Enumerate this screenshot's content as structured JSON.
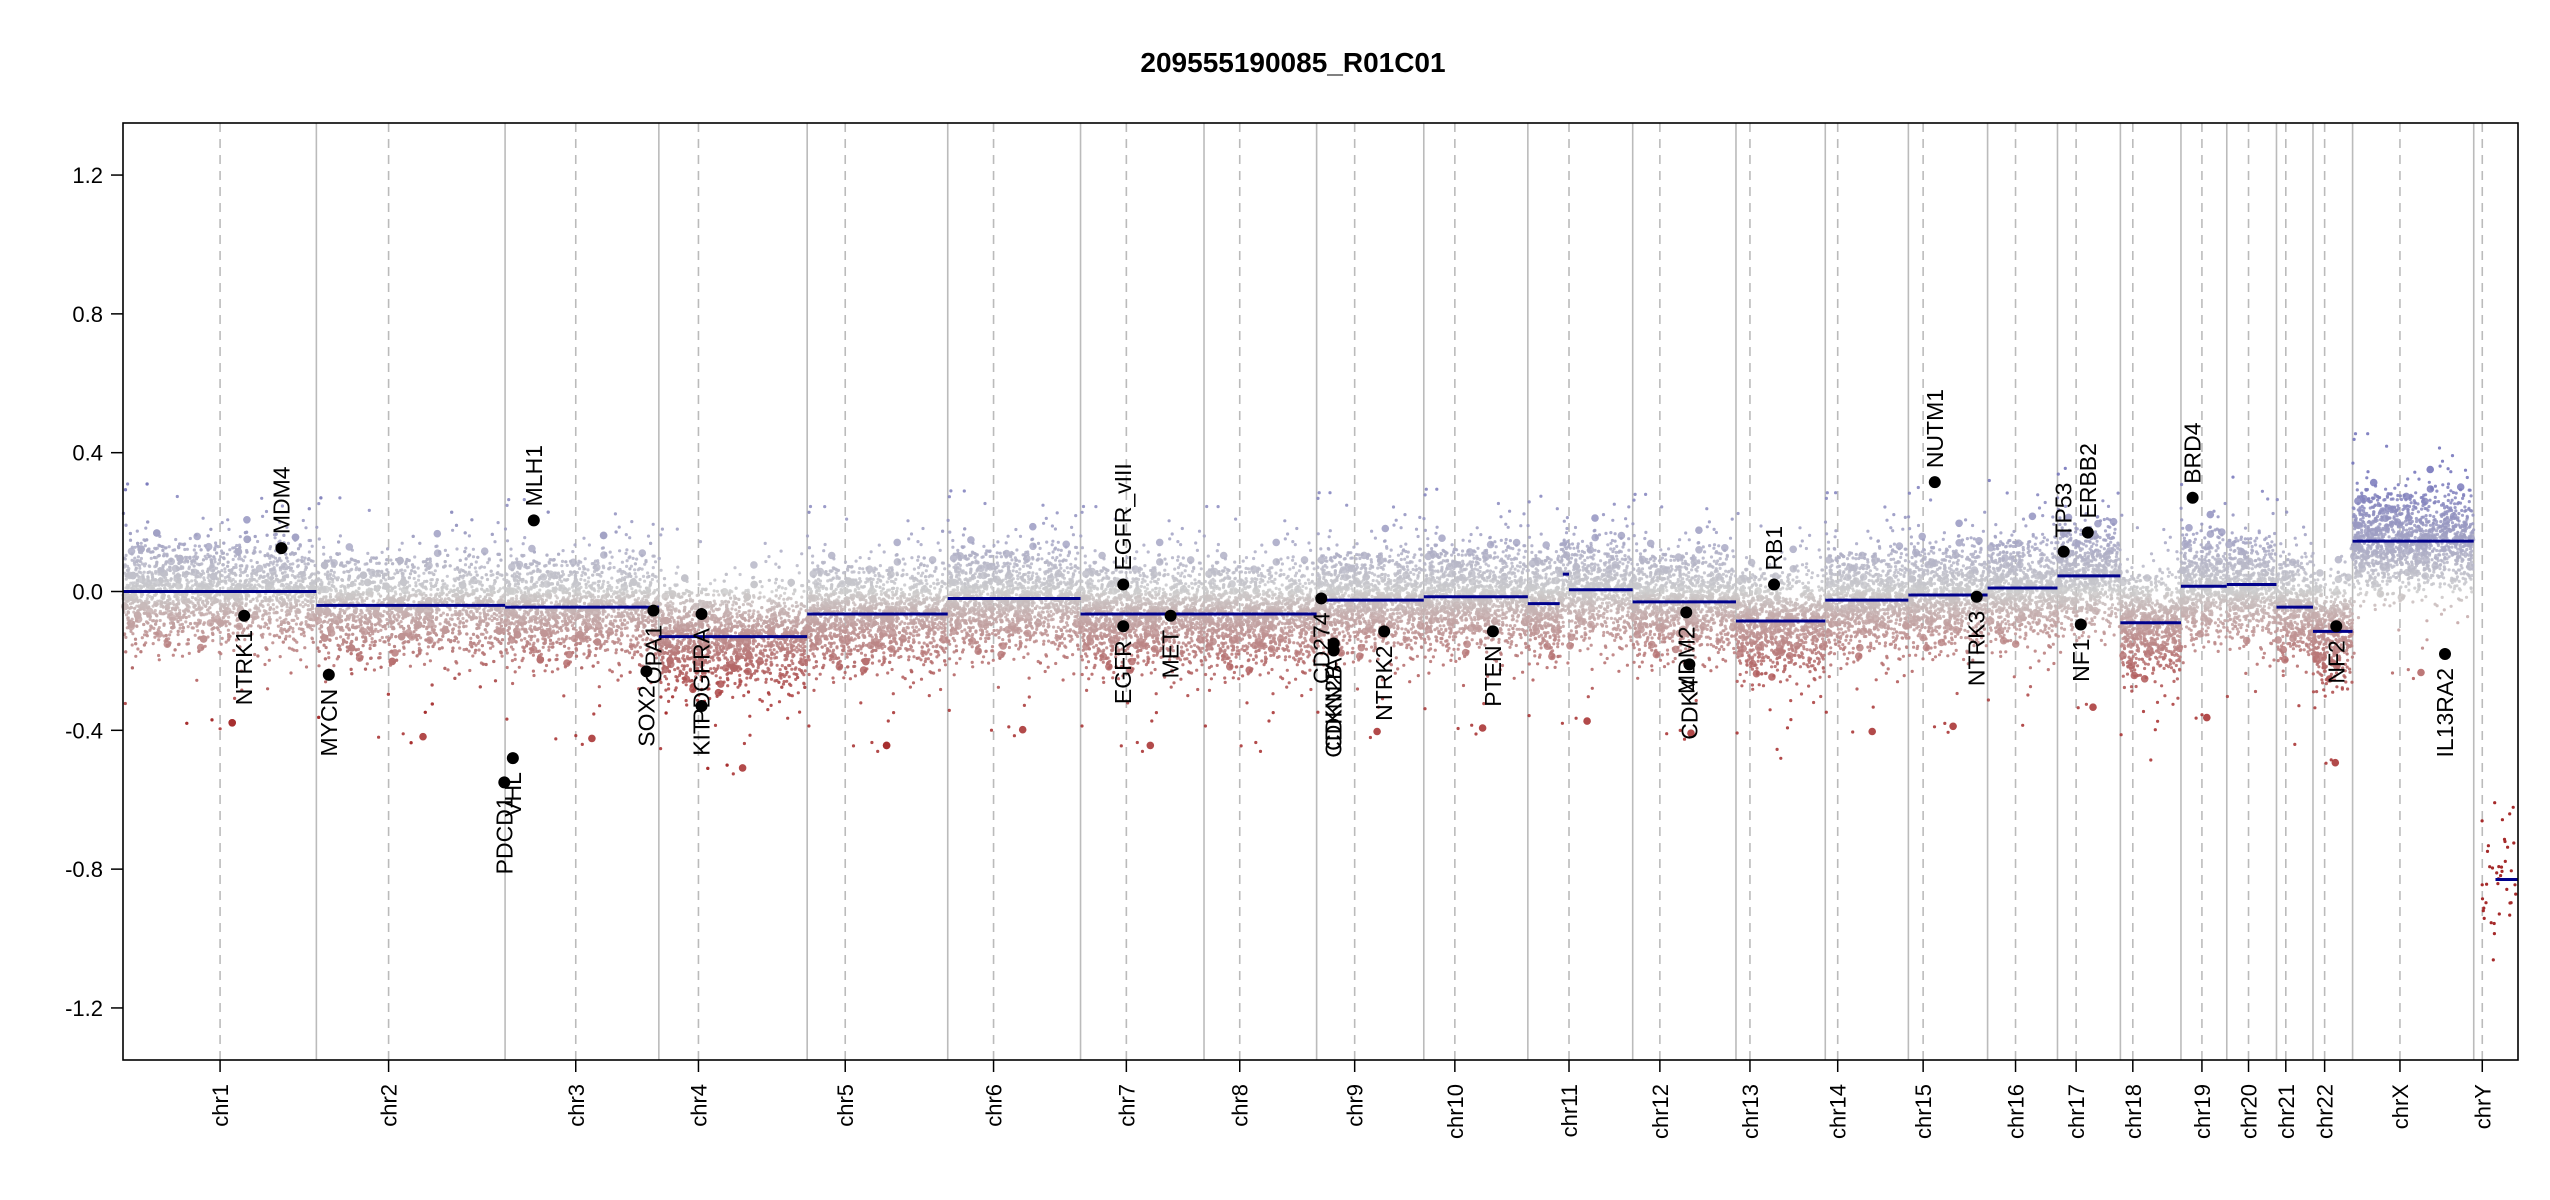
{
  "chart_data": {
    "type": "scatter",
    "title": "209555190085_R01C01",
    "xlabel": "",
    "ylabel": "",
    "ylim": [
      -1.35,
      1.35
    ],
    "y_ticks": [
      {
        "value": 1.2,
        "label": "1.2"
      },
      {
        "value": 0.8,
        "label": "0.8"
      },
      {
        "value": 0.4,
        "label": "0.4"
      },
      {
        "value": 0.0,
        "label": "0.0"
      },
      {
        "value": -0.4,
        "label": "-0.4"
      },
      {
        "value": -0.8,
        "label": "-0.8"
      },
      {
        "value": -1.2,
        "label": "-1.2"
      }
    ],
    "grid": "chromosome boundaries (solid) and centromeres (dashed)",
    "colors": {
      "segment": "#00008b",
      "gain": "#7777bb",
      "neutral": "#cccccc",
      "loss": "#a52a2a",
      "gene_point": "#000000",
      "boundary": "#bbbbbb"
    },
    "chromosomes": [
      {
        "name": "chr1",
        "start": 0,
        "end": 249,
        "centromere": 125
      },
      {
        "name": "chr2",
        "start": 249,
        "end": 492,
        "centromere": 342
      },
      {
        "name": "chr3",
        "start": 492,
        "end": 690,
        "centromere": 583
      },
      {
        "name": "chr4",
        "start": 690,
        "end": 881,
        "centromere": 741
      },
      {
        "name": "chr5",
        "start": 881,
        "end": 1062,
        "centromere": 930
      },
      {
        "name": "chr6",
        "start": 1062,
        "end": 1233,
        "centromere": 1121
      },
      {
        "name": "chr7",
        "start": 1233,
        "end": 1392,
        "centromere": 1292
      },
      {
        "name": "chr8",
        "start": 1392,
        "end": 1537,
        "centromere": 1438
      },
      {
        "name": "chr9",
        "start": 1537,
        "end": 1675,
        "centromere": 1586
      },
      {
        "name": "chr10",
        "start": 1675,
        "end": 1809,
        "centromere": 1715
      },
      {
        "name": "chr11",
        "start": 1809,
        "end": 1944,
        "centromere": 1862
      },
      {
        "name": "chr12",
        "start": 1944,
        "end": 2077,
        "centromere": 1979
      },
      {
        "name": "chr13",
        "start": 2077,
        "end": 2192,
        "centromere": 2095
      },
      {
        "name": "chr14",
        "start": 2192,
        "end": 2299,
        "centromere": 2208
      },
      {
        "name": "chr15",
        "start": 2299,
        "end": 2401,
        "centromere": 2318
      },
      {
        "name": "chr16",
        "start": 2401,
        "end": 2491,
        "centromere": 2437
      },
      {
        "name": "chr17",
        "start": 2491,
        "end": 2572,
        "centromere": 2515
      },
      {
        "name": "chr18",
        "start": 2572,
        "end": 2650,
        "centromere": 2588
      },
      {
        "name": "chr19",
        "start": 2650,
        "end": 2709,
        "centromere": 2677
      },
      {
        "name": "chr20",
        "start": 2709,
        "end": 2773,
        "centromere": 2737
      },
      {
        "name": "chr21",
        "start": 2773,
        "end": 2820,
        "centromere": 2785
      },
      {
        "name": "chr22",
        "start": 2820,
        "end": 2871,
        "centromere": 2835
      },
      {
        "name": "chrX",
        "start": 2871,
        "end": 3027,
        "centromere": 2932
      },
      {
        "name": "chrY",
        "start": 3027,
        "end": 3084,
        "centromere": 3038
      }
    ],
    "segments": [
      {
        "start": 0,
        "end": 249,
        "value": 0.0
      },
      {
        "start": 249,
        "end": 492,
        "value": -0.04
      },
      {
        "start": 492,
        "end": 690,
        "value": -0.045
      },
      {
        "start": 690,
        "end": 881,
        "value": -0.13
      },
      {
        "start": 881,
        "end": 1062,
        "value": -0.065
      },
      {
        "start": 1062,
        "end": 1233,
        "value": -0.02
      },
      {
        "start": 1233,
        "end": 1537,
        "value": -0.065
      },
      {
        "start": 1537,
        "end": 1675,
        "value": -0.025
      },
      {
        "start": 1675,
        "end": 1809,
        "value": -0.015
      },
      {
        "start": 1809,
        "end": 1850,
        "value": -0.035
      },
      {
        "start": 1854,
        "end": 1862,
        "value": 0.05
      },
      {
        "start": 1862,
        "end": 1944,
        "value": 0.005
      },
      {
        "start": 1944,
        "end": 2077,
        "value": -0.03
      },
      {
        "start": 2077,
        "end": 2192,
        "value": -0.085
      },
      {
        "start": 2192,
        "end": 2299,
        "value": -0.025
      },
      {
        "start": 2299,
        "end": 2401,
        "value": -0.01
      },
      {
        "start": 2401,
        "end": 2491,
        "value": 0.01
      },
      {
        "start": 2491,
        "end": 2572,
        "value": 0.045
      },
      {
        "start": 2572,
        "end": 2650,
        "value": -0.09
      },
      {
        "start": 2650,
        "end": 2709,
        "value": 0.015
      },
      {
        "start": 2709,
        "end": 2773,
        "value": 0.02
      },
      {
        "start": 2773,
        "end": 2820,
        "value": -0.045
      },
      {
        "start": 2820,
        "end": 2871,
        "value": -0.115
      },
      {
        "start": 2871,
        "end": 3027,
        "value": 0.145
      },
      {
        "start": 3055,
        "end": 3084,
        "value": -0.83
      }
    ],
    "genes": [
      {
        "name": "NTRK1",
        "pos": 156,
        "value": -0.07
      },
      {
        "name": "MDM4",
        "pos": 204,
        "value": 0.125
      },
      {
        "name": "MYCN",
        "pos": 265,
        "value": -0.24
      },
      {
        "name": "PDCD1",
        "pos": 491,
        "value": -0.55
      },
      {
        "name": "VHL",
        "pos": 502,
        "value": -0.48
      },
      {
        "name": "MLH1",
        "pos": 529,
        "value": 0.205
      },
      {
        "name": "SOX2",
        "pos": 674,
        "value": -0.23
      },
      {
        "name": "OPA1",
        "pos": 683,
        "value": -0.055
      },
      {
        "name": "KIT",
        "pos": 745,
        "value": -0.33
      },
      {
        "name": "PDGFRA",
        "pos": 745,
        "value": -0.065
      },
      {
        "name": "EGFR",
        "pos": 1288,
        "value": -0.1
      },
      {
        "name": "EGFR_vIII",
        "pos": 1288,
        "value": 0.02
      },
      {
        "name": "MET",
        "pos": 1349,
        "value": -0.07
      },
      {
        "name": "CD274",
        "pos": 1543,
        "value": -0.02
      },
      {
        "name": "CDKN2A",
        "pos": 1559,
        "value": -0.15
      },
      {
        "name": "CDKN2B",
        "pos": 1559,
        "value": -0.17
      },
      {
        "name": "NTRK2",
        "pos": 1624,
        "value": -0.115
      },
      {
        "name": "PTEN",
        "pos": 1764,
        "value": -0.115
      },
      {
        "name": "MDM2",
        "pos": 2013,
        "value": -0.06
      },
      {
        "name": "CDK4",
        "pos": 2017,
        "value": -0.21
      },
      {
        "name": "RB1",
        "pos": 2126,
        "value": 0.02
      },
      {
        "name": "NUTM1",
        "pos": 2333,
        "value": 0.315
      },
      {
        "name": "NTRK3",
        "pos": 2387,
        "value": -0.015
      },
      {
        "name": "TP53",
        "pos": 2499,
        "value": 0.115
      },
      {
        "name": "ERBB2",
        "pos": 2530,
        "value": 0.17
      },
      {
        "name": "NF1",
        "pos": 2521,
        "value": -0.095
      },
      {
        "name": "BRD4",
        "pos": 2665,
        "value": 0.27
      },
      {
        "name": "NF2",
        "pos": 2850,
        "value": -0.1
      },
      {
        "name": "IL13RA2",
        "pos": 2990,
        "value": -0.18
      }
    ]
  }
}
